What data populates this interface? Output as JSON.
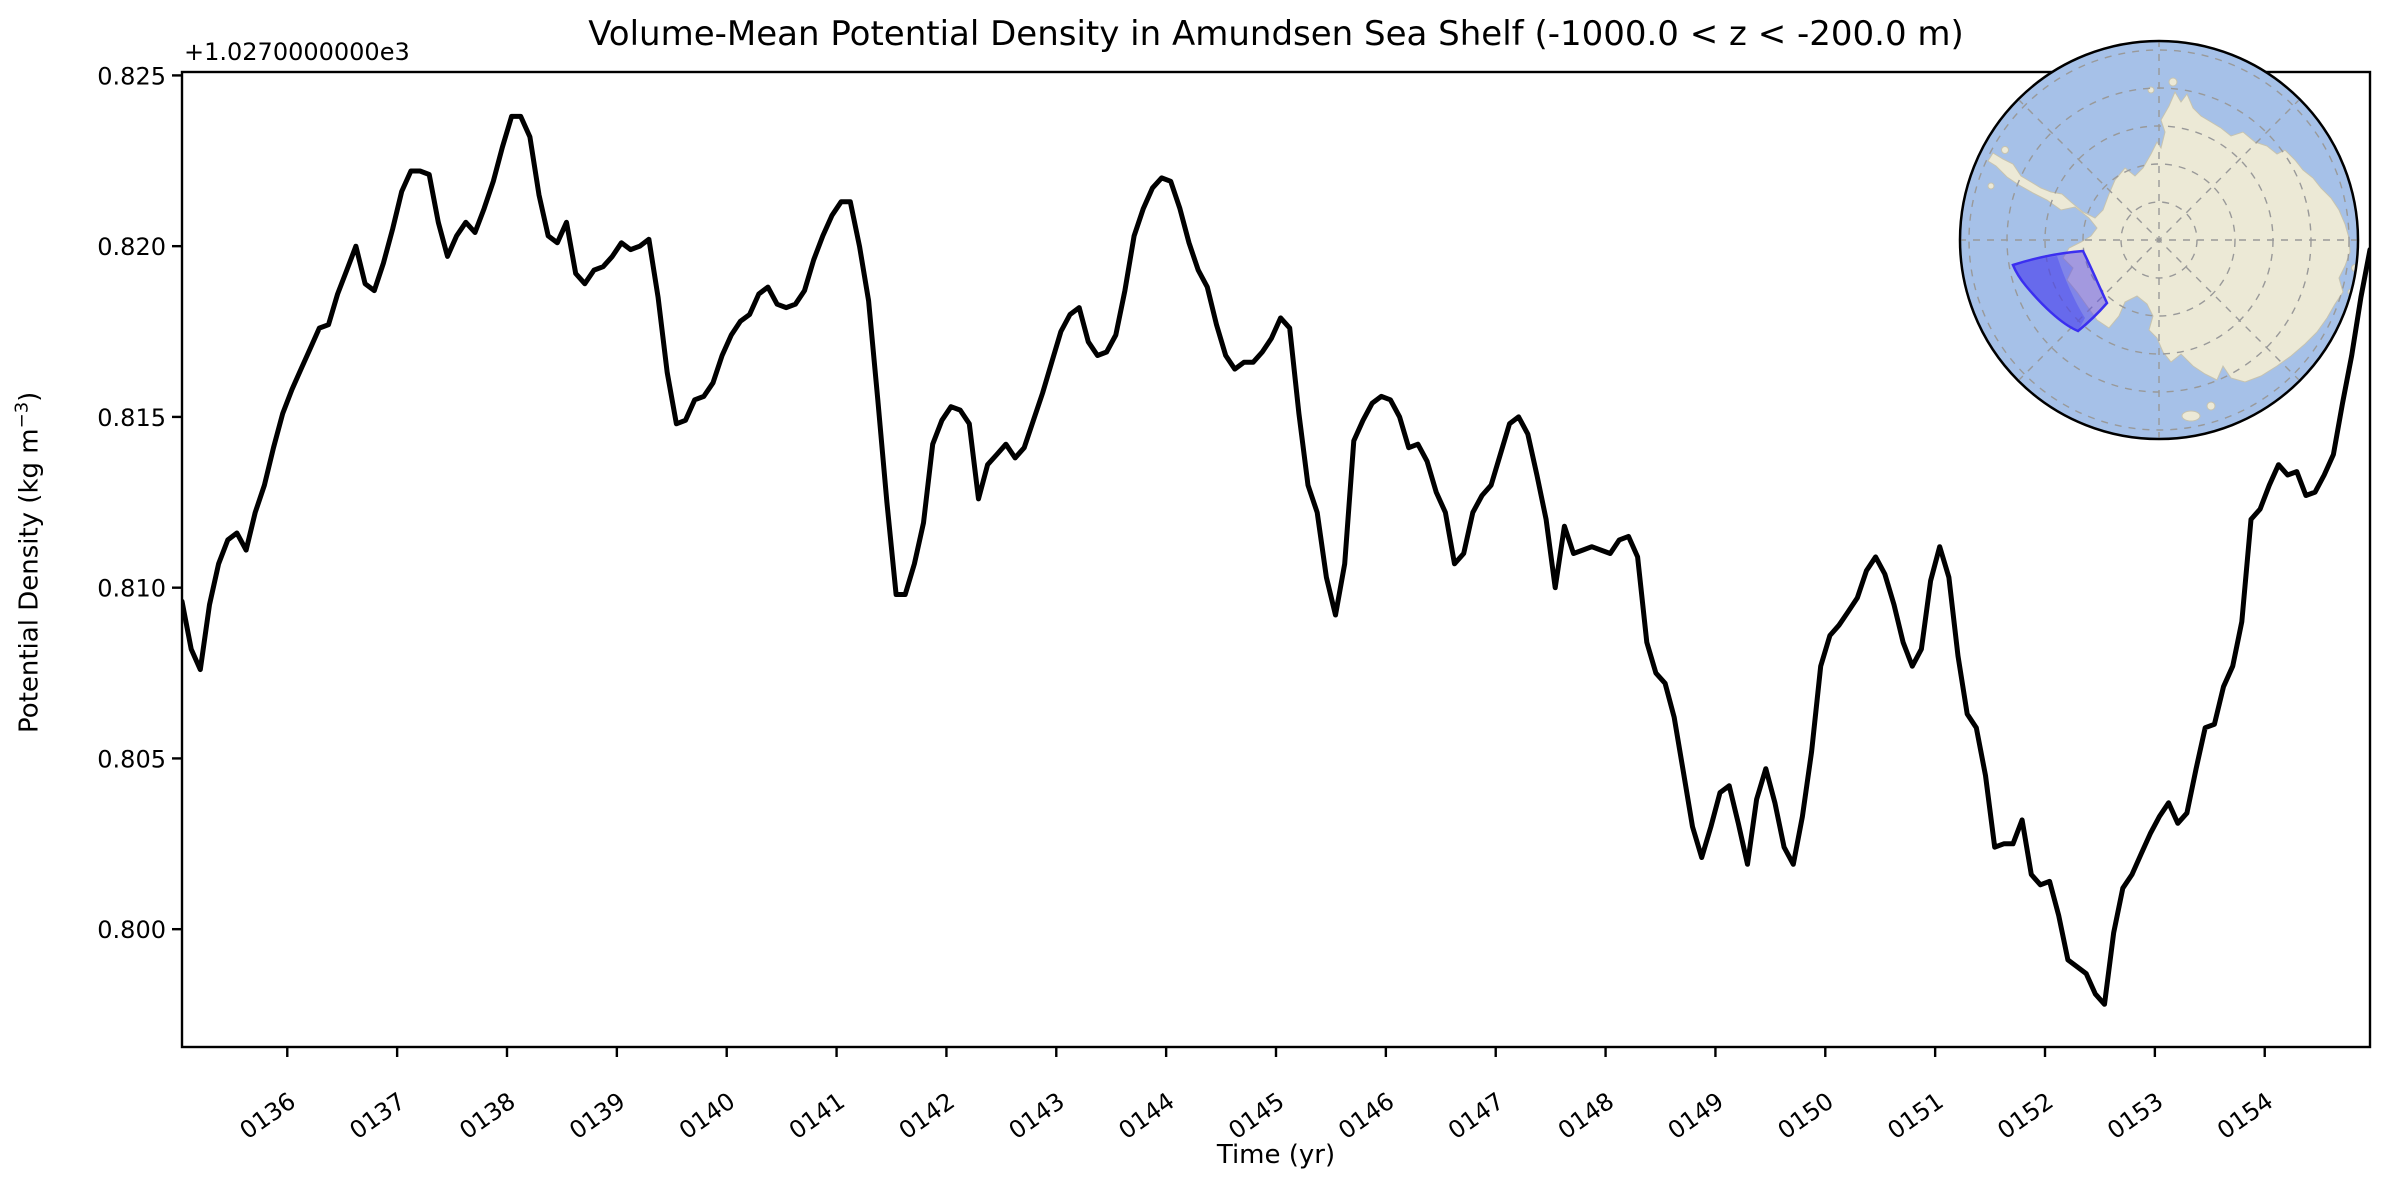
{
  "title": "Volume-Mean Potential Density in Amundsen Sea Shelf (-1000.0 < z < -200.0 m)",
  "axes": {
    "offset_text": "+1.0270000000e3",
    "xlabel": "Time (yr)",
    "ylabel_prefix": "Potential Density (kg m",
    "ylabel_sup": "−3",
    "ylabel_suffix": ")",
    "yticks": {
      "labels": [
        "0.825",
        "0.820",
        "0.815",
        "0.810",
        "0.805",
        "0.800"
      ],
      "values": [
        0.825,
        0.82,
        0.815,
        0.81,
        0.805,
        0.8
      ]
    },
    "xticks": {
      "labels": [
        "0136",
        "0137",
        "0138",
        "0139",
        "0140",
        "0141",
        "0142",
        "0143",
        "0144",
        "0145",
        "0146",
        "0147",
        "0148",
        "0149",
        "0150",
        "0151",
        "0152",
        "0153",
        "0154"
      ],
      "values": [
        136,
        137,
        138,
        139,
        140,
        141,
        142,
        143,
        144,
        145,
        146,
        147,
        148,
        149,
        150,
        151,
        152,
        153,
        154
      ]
    }
  },
  "chart_data": {
    "type": "line",
    "title": "Volume-Mean Potential Density in Amundsen Sea Shelf (-1000.0 < z < -200.0 m)",
    "xlabel": "Time (yr)",
    "ylabel": "Potential Density (kg m^-3)",
    "y_offset": 1027.0,
    "xlim": [
      135.0417,
      154.9583
    ],
    "ylim": [
      0.79655,
      0.8251
    ],
    "grid": false,
    "legend": "none",
    "x_start": 135.0417,
    "x_step": 0.0833333,
    "series": [
      {
        "name": "volume-mean-potential-density",
        "color": "#000000",
        "linewidth": 5,
        "values": [
          0.8096,
          0.8082,
          0.8076,
          0.8095,
          0.8107,
          0.8114,
          0.8116,
          0.8111,
          0.8122,
          0.813,
          0.8141,
          0.8151,
          0.8158,
          0.8164,
          0.817,
          0.8176,
          0.8177,
          0.8186,
          0.8193,
          0.82,
          0.8189,
          0.8187,
          0.8195,
          0.8205,
          0.8216,
          0.8222,
          0.8222,
          0.8221,
          0.8207,
          0.8197,
          0.8203,
          0.8207,
          0.8204,
          0.8211,
          0.8219,
          0.8229,
          0.8238,
          0.8238,
          0.8232,
          0.8215,
          0.8203,
          0.8201,
          0.8207,
          0.8192,
          0.8189,
          0.8193,
          0.8194,
          0.8197,
          0.8201,
          0.8199,
          0.82,
          0.8202,
          0.8185,
          0.8163,
          0.8148,
          0.8149,
          0.8155,
          0.8156,
          0.816,
          0.8168,
          0.8174,
          0.8178,
          0.818,
          0.8186,
          0.8188,
          0.8183,
          0.8182,
          0.8183,
          0.8187,
          0.8196,
          0.8203,
          0.8209,
          0.8213,
          0.8213,
          0.82,
          0.8184,
          0.8155,
          0.8125,
          0.8098,
          0.8098,
          0.8107,
          0.8119,
          0.8142,
          0.8149,
          0.8153,
          0.8152,
          0.8148,
          0.8126,
          0.8136,
          0.8139,
          0.8142,
          0.8138,
          0.8141,
          0.8149,
          0.8157,
          0.8166,
          0.8175,
          0.818,
          0.8182,
          0.8172,
          0.8168,
          0.8169,
          0.8174,
          0.8187,
          0.8203,
          0.8211,
          0.8217,
          0.822,
          0.8219,
          0.8211,
          0.8201,
          0.8193,
          0.8188,
          0.8177,
          0.8168,
          0.8164,
          0.8166,
          0.8166,
          0.8169,
          0.8173,
          0.8179,
          0.8176,
          0.8151,
          0.813,
          0.8122,
          0.8103,
          0.8092,
          0.8107,
          0.8143,
          0.8149,
          0.8154,
          0.8156,
          0.8155,
          0.815,
          0.8141,
          0.8142,
          0.8137,
          0.8128,
          0.8122,
          0.8107,
          0.811,
          0.8122,
          0.8127,
          0.813,
          0.8139,
          0.8148,
          0.815,
          0.8145,
          0.8133,
          0.812,
          0.81,
          0.8118,
          0.811,
          0.8111,
          0.8112,
          0.8111,
          0.811,
          0.8114,
          0.8115,
          0.8109,
          0.8084,
          0.8075,
          0.8072,
          0.8062,
          0.8046,
          0.803,
          0.8021,
          0.803,
          0.804,
          0.8042,
          0.8031,
          0.8019,
          0.8038,
          0.8047,
          0.8037,
          0.8024,
          0.8019,
          0.8033,
          0.8052,
          0.8077,
          0.8086,
          0.8089,
          0.8093,
          0.8097,
          0.8105,
          0.8109,
          0.8104,
          0.8095,
          0.8084,
          0.8077,
          0.8082,
          0.8102,
          0.8112,
          0.8103,
          0.808,
          0.8063,
          0.8059,
          0.8045,
          0.8024,
          0.8025,
          0.8025,
          0.8032,
          0.8016,
          0.8013,
          0.8014,
          0.8004,
          0.7991,
          0.7989,
          0.7987,
          0.7981,
          0.7978,
          0.7999,
          0.8012,
          0.8016,
          0.8022,
          0.8028,
          0.8033,
          0.8037,
          0.8031,
          0.8034,
          0.8047,
          0.8059,
          0.806,
          0.8071,
          0.8077,
          0.809,
          0.812,
          0.8123,
          0.813,
          0.8136,
          0.8133,
          0.8134,
          0.8127,
          0.8128,
          0.8133,
          0.8139,
          0.8154,
          0.8168,
          0.8185,
          0.8199
        ]
      }
    ]
  },
  "inset_map": {
    "ocean_color": "#a6c1e8",
    "land_color": "#ece9d6",
    "region_fill": "#5a4ae8",
    "region_border": "#3b2ff0",
    "graticule_color": "#999999",
    "outline_color": "#000000"
  }
}
